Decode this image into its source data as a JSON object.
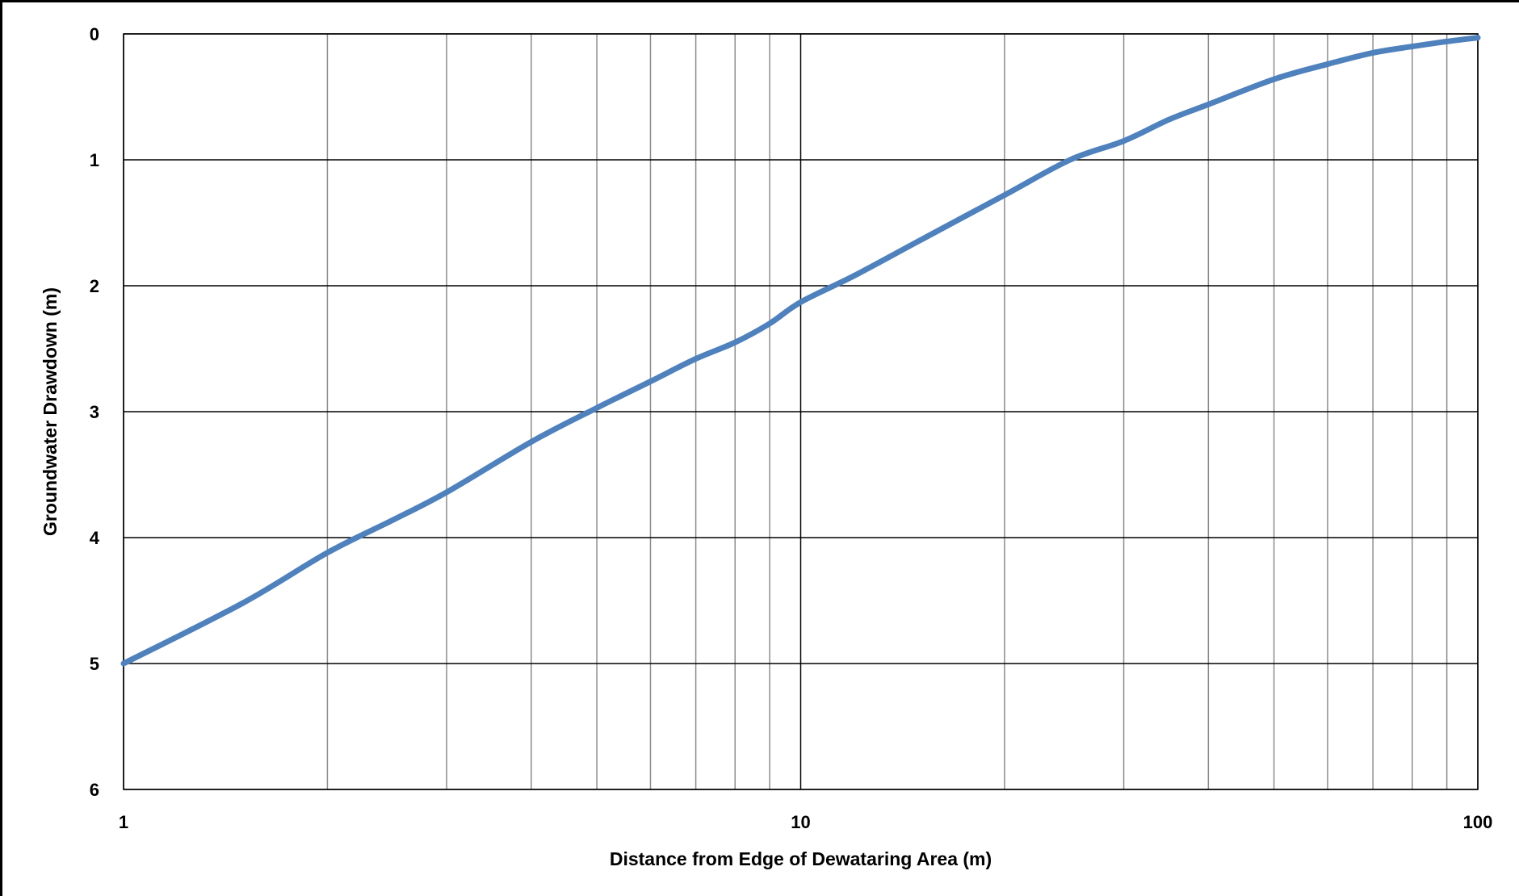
{
  "chart_data": {
    "type": "line",
    "title": "",
    "xlabel": "Distance from Edge of Dewataring Area (m)",
    "ylabel": "Groundwater Drawdown (m)",
    "x_scale": "log",
    "xlim": [
      1,
      100
    ],
    "ylim": [
      0,
      6
    ],
    "y_inverted": true,
    "grid": true,
    "x_major_ticks": [
      1,
      10,
      100
    ],
    "x_tick_labels": [
      "1",
      "10",
      "100"
    ],
    "x_minor_ticks": [
      2,
      3,
      4,
      5,
      6,
      7,
      8,
      9,
      20,
      30,
      40,
      50,
      60,
      70,
      80,
      90
    ],
    "y_ticks": [
      0,
      1,
      2,
      3,
      4,
      5,
      6
    ],
    "y_tick_labels": [
      "0",
      "1",
      "2",
      "3",
      "4",
      "5",
      "6"
    ],
    "line_color": "#4f81bd",
    "series": [
      {
        "x": [
          1,
          1.5,
          2,
          2.5,
          3,
          4,
          5,
          6,
          7,
          8,
          9,
          10,
          12,
          15,
          20,
          25,
          30,
          35,
          40,
          50,
          60,
          70,
          80,
          90,
          100
        ],
        "values": [
          5.0,
          4.52,
          4.12,
          3.86,
          3.64,
          3.24,
          2.97,
          2.76,
          2.58,
          2.45,
          2.3,
          2.13,
          1.92,
          1.64,
          1.28,
          1.0,
          0.85,
          0.68,
          0.56,
          0.36,
          0.24,
          0.15,
          0.1,
          0.06,
          0.03
        ]
      }
    ]
  }
}
